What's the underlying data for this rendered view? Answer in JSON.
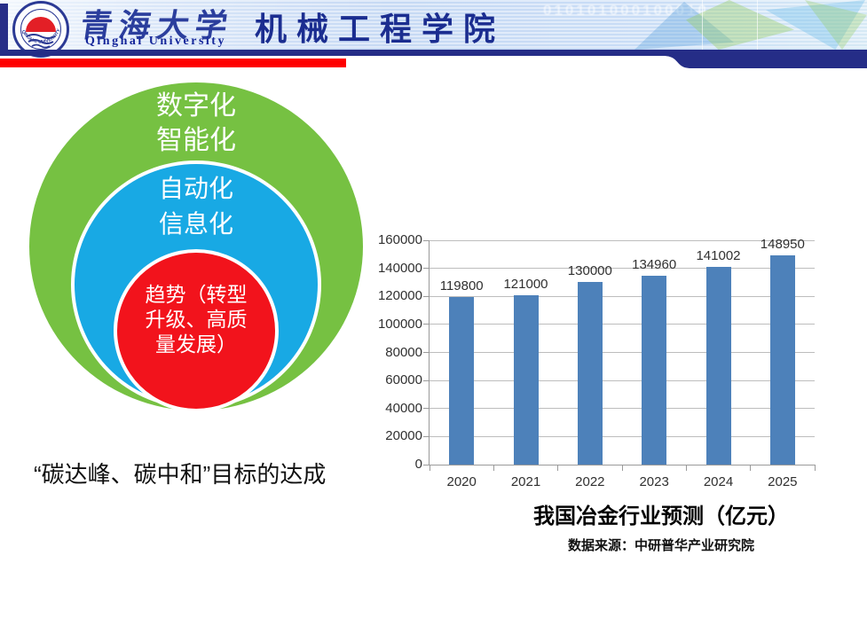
{
  "header": {
    "university_cn": "青海大学",
    "university_en": "Qinghai  University",
    "department": "机械工程学院",
    "digits_decor": "010101000100010",
    "seal_text": "QINGHAI UNIVERSITY",
    "colors": {
      "navy": "#252d87",
      "red_bar": "#fe0000",
      "title_blue": "#1b2d90"
    }
  },
  "diagram": {
    "outer": {
      "color": "#76c142",
      "label_lines": [
        "数字化",
        "智能化"
      ]
    },
    "middle": {
      "color": "#18a9e4",
      "label_lines": [
        "自动化",
        "信息化"
      ]
    },
    "inner": {
      "color": "#f2131c",
      "label_lines": [
        "趋势（转型",
        "升级、高质",
        "量发展）"
      ]
    }
  },
  "caption_left": "“碳达峰、碳中和”目标的达成",
  "chart_caption": {
    "title": "我国冶金行业预测（亿元）",
    "source": "数据来源：中研普华产业研究院"
  },
  "chart_data": {
    "type": "bar",
    "categories": [
      "2020",
      "2021",
      "2022",
      "2023",
      "2024",
      "2025"
    ],
    "values": [
      119800,
      121000,
      130000,
      134960,
      141002,
      148950
    ],
    "title": "我国冶金行业预测（亿元）",
    "xlabel": "",
    "ylabel": "",
    "ylim": [
      0,
      160000
    ],
    "ytick_step": 20000,
    "bar_color": "#4d81ba",
    "grid": true,
    "data_labels": true,
    "legend": "none"
  }
}
